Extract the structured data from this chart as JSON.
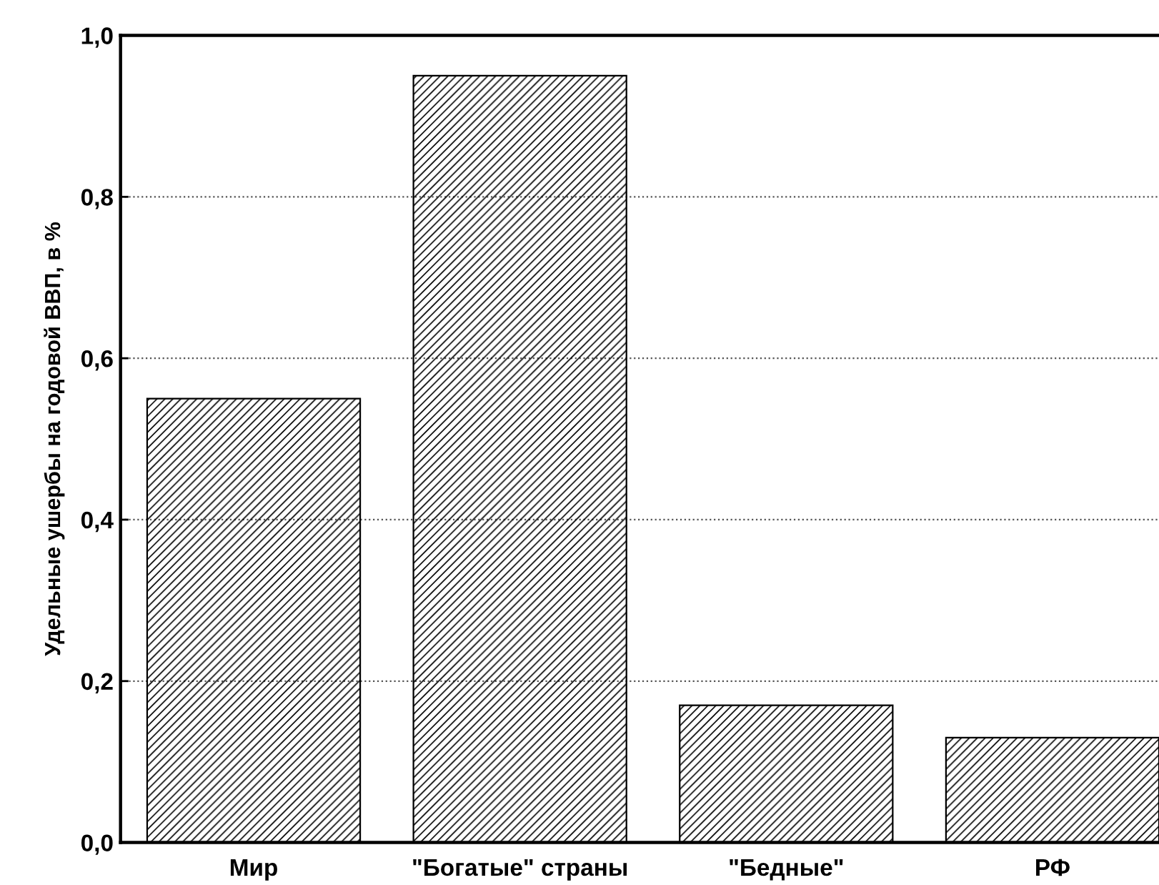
{
  "chart_data": {
    "type": "bar",
    "ylabel": "Удельные ушербы на годовой ВВП, в %",
    "categories": [
      "Мир",
      "\"Богатые\" страны",
      "\"Бедные\"",
      "РФ"
    ],
    "values": [
      0.55,
      0.95,
      0.17,
      0.13
    ],
    "color": "#000000",
    "ylim": [
      0,
      1.0
    ],
    "yticks": [
      {
        "value": 0,
        "label": "0,0"
      },
      {
        "value": 0.2,
        "label": "0,2"
      },
      {
        "value": 0.4,
        "label": "0,4"
      },
      {
        "value": 0.6,
        "label": "0,6"
      },
      {
        "value": 0.8,
        "label": "0,8"
      },
      {
        "value": 1.0,
        "label": "1,0"
      }
    ],
    "grid": "y"
  }
}
